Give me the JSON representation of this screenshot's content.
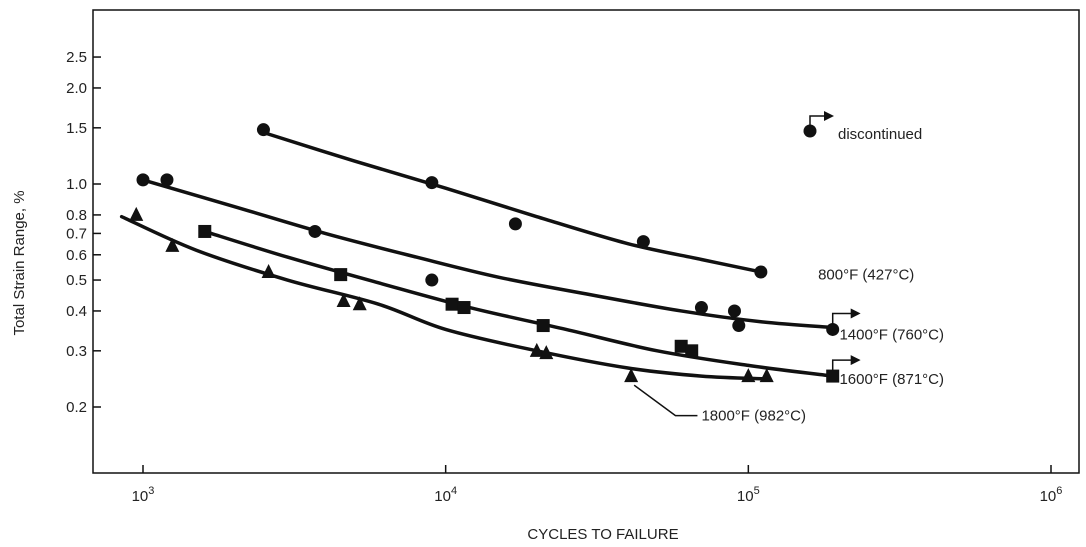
{
  "chart_data": {
    "type": "scatter",
    "title": "",
    "xlabel": "CYCLES TO FAILURE",
    "ylabel": "Total Strain Range, %",
    "x_scale": "log",
    "y_scale": "log",
    "xlim": [
      700,
      1500000
    ],
    "ylim": [
      0.11,
      4.0
    ],
    "grid": false,
    "x_ticks": [
      {
        "value": 1000,
        "base": "10",
        "exp": "3"
      },
      {
        "value": 10000,
        "base": "10",
        "exp": "4"
      },
      {
        "value": 100000,
        "base": "10",
        "exp": "5"
      },
      {
        "value": 1000000,
        "base": "10",
        "exp": "6"
      }
    ],
    "y_ticks": [
      {
        "value": 0.2,
        "label": "0.2"
      },
      {
        "value": 0.3,
        "label": "0.3"
      },
      {
        "value": 0.4,
        "label": "0.4"
      },
      {
        "value": 0.5,
        "label": "0.5"
      },
      {
        "value": 0.6,
        "label": "0.6"
      },
      {
        "value": 0.7,
        "label": "0.7"
      },
      {
        "value": 0.8,
        "label": "0.8"
      },
      {
        "value": 1.0,
        "label": "1.0"
      },
      {
        "value": 1.5,
        "label": "1.5"
      },
      {
        "value": 2.0,
        "label": "2.0"
      },
      {
        "value": 2.5,
        "label": "2.5"
      }
    ],
    "series": [
      {
        "name": "800°F (427°C)",
        "marker": "circle",
        "points": [
          [
            2500,
            1.48
          ],
          [
            9000,
            1.01
          ],
          [
            17000,
            0.75
          ],
          [
            45000,
            0.66
          ],
          [
            110000,
            0.53
          ]
        ],
        "curve": [
          [
            2500,
            1.45
          ],
          [
            5000,
            1.18
          ],
          [
            10000,
            0.97
          ],
          [
            20000,
            0.79
          ],
          [
            40000,
            0.65
          ],
          [
            70000,
            0.58
          ],
          [
            110000,
            0.53
          ]
        ],
        "label_at": [
          170000,
          0.52
        ]
      },
      {
        "name": "1400°F (760°C)",
        "marker": "circle",
        "points": [
          [
            1000,
            1.03
          ],
          [
            1200,
            1.03
          ],
          [
            3700,
            0.71
          ],
          [
            9000,
            0.5
          ],
          [
            70000,
            0.41
          ],
          [
            90000,
            0.4
          ],
          [
            93000,
            0.36
          ],
          [
            190000,
            0.35
          ]
        ],
        "curve": [
          [
            1000,
            1.03
          ],
          [
            2000,
            0.85
          ],
          [
            4000,
            0.7
          ],
          [
            8000,
            0.59
          ],
          [
            15000,
            0.51
          ],
          [
            30000,
            0.45
          ],
          [
            60000,
            0.4
          ],
          [
            110000,
            0.37
          ],
          [
            190000,
            0.355
          ]
        ],
        "label_at": [
          200000,
          0.338
        ],
        "discontinued": true
      },
      {
        "name": "1600°F (871°C)",
        "marker": "square",
        "points": [
          [
            1600,
            0.71
          ],
          [
            4500,
            0.52
          ],
          [
            10500,
            0.42
          ],
          [
            11500,
            0.41
          ],
          [
            21000,
            0.36
          ],
          [
            60000,
            0.31
          ],
          [
            65000,
            0.3
          ],
          [
            190000,
            0.25
          ]
        ],
        "curve": [
          [
            1600,
            0.71
          ],
          [
            3000,
            0.59
          ],
          [
            6000,
            0.49
          ],
          [
            12000,
            0.41
          ],
          [
            25000,
            0.35
          ],
          [
            50000,
            0.3
          ],
          [
            100000,
            0.27
          ],
          [
            190000,
            0.25
          ]
        ],
        "label_at": [
          200000,
          0.245
        ],
        "discontinued": true
      },
      {
        "name": "1800°F (982°C)",
        "marker": "triangle",
        "points": [
          [
            950,
            0.8
          ],
          [
            1250,
            0.64
          ],
          [
            2600,
            0.53
          ],
          [
            4600,
            0.43
          ],
          [
            5200,
            0.42
          ],
          [
            20000,
            0.3
          ],
          [
            21500,
            0.295
          ],
          [
            41000,
            0.25
          ],
          [
            100000,
            0.25
          ],
          [
            115000,
            0.25
          ]
        ],
        "curve": [
          [
            850,
            0.79
          ],
          [
            1500,
            0.62
          ],
          [
            3000,
            0.5
          ],
          [
            6000,
            0.42
          ],
          [
            10000,
            0.35
          ],
          [
            20000,
            0.3
          ],
          [
            40000,
            0.265
          ],
          [
            70000,
            0.25
          ],
          [
            115000,
            0.245
          ]
        ],
        "label_at": [
          70000,
          0.188
        ],
        "callout_from": [
          41000,
          0.248
        ],
        "discontinued_points": [
          [
            41000,
            0.25
          ]
        ]
      }
    ],
    "legend": {
      "text": "discontinued",
      "placement": "top-right"
    }
  }
}
